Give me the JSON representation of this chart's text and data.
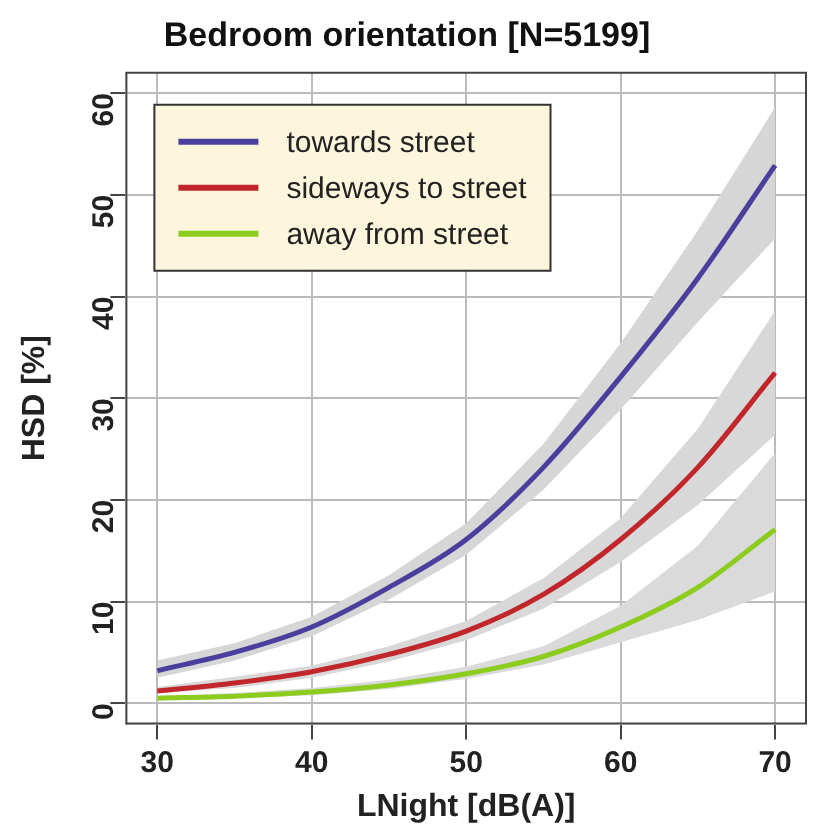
{
  "chart_data": {
    "type": "line",
    "title": "Bedroom orientation [N=5199]",
    "xlabel": "LNight [dB(A)]",
    "ylabel": "HSD [%]",
    "x": [
      30,
      35,
      40,
      45,
      50,
      55,
      60,
      65,
      70
    ],
    "series": [
      {
        "name": "towards street",
        "color": "#4b3f9e",
        "values": [
          3.2,
          5,
          7.5,
          11.4,
          16.1,
          23.2,
          32.1,
          41.8,
          52.9
        ],
        "lower": [
          2.5,
          4.2,
          6.6,
          10.2,
          14.6,
          21,
          28.9,
          37.5,
          45.7
        ],
        "upper": [
          4.2,
          5.9,
          8.5,
          12.6,
          17.7,
          25.5,
          35.4,
          46.5,
          58.6
        ]
      },
      {
        "name": "sideways to street",
        "color": "#c0262a",
        "values": [
          1.2,
          2,
          3.1,
          4.8,
          7.1,
          10.7,
          16.1,
          23.2,
          32.5
        ],
        "lower": [
          1.0,
          1.5,
          2.5,
          4.1,
          6.2,
          9.3,
          13.9,
          19.5,
          26.4
        ],
        "upper": [
          1.6,
          2.6,
          3.7,
          5.6,
          8.1,
          12.3,
          18.2,
          27,
          38.6
        ]
      },
      {
        "name": "away from street",
        "color": "#8ccc1e",
        "values": [
          0.5,
          0.7,
          1.1,
          1.8,
          2.9,
          4.6,
          7.5,
          11.4,
          17.1
        ],
        "lower": [
          0.3,
          0.5,
          0.8,
          1.4,
          2.4,
          3.8,
          6,
          8.2,
          11
        ],
        "upper": [
          0.7,
          1,
          1.5,
          2.3,
          3.6,
          5.6,
          9.6,
          15.5,
          24.6
        ]
      }
    ],
    "xlim": [
      28,
      72
    ],
    "xticks": [
      30,
      40,
      50,
      60,
      70
    ],
    "ylim": [
      -2,
      62
    ],
    "yticks": [
      0,
      10,
      20,
      30,
      40,
      50,
      60
    ],
    "grid": true,
    "legend": "top left",
    "marker": "none",
    "line_style": "solid"
  }
}
